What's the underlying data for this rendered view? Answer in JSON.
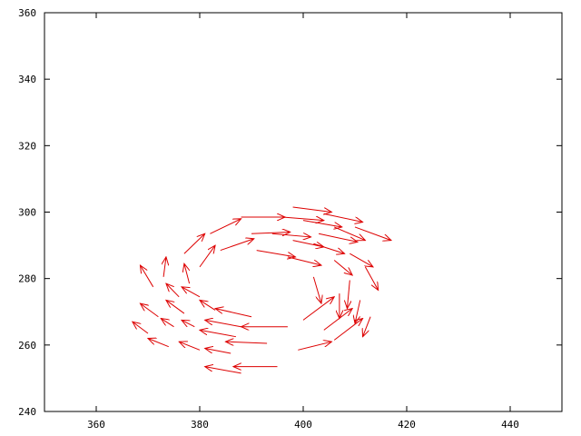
{
  "chart_data": {
    "type": "vector_field",
    "title": "",
    "xlabel": "",
    "ylabel": "",
    "xlim": [
      350,
      450
    ],
    "ylim": [
      240,
      360
    ],
    "x_ticks": [
      360,
      380,
      400,
      420,
      440
    ],
    "y_ticks": [
      240,
      260,
      280,
      300,
      320,
      340,
      360
    ],
    "x_tick_labels": [
      "360",
      "380",
      "400",
      "420",
      "440"
    ],
    "y_tick_labels": [
      "240",
      "260",
      "280",
      "300",
      "320",
      "340",
      "360"
    ],
    "grid": false,
    "legend": "none",
    "arrow_color": "#dd0000",
    "vectors": [
      {
        "x": 398,
        "y": 301.5,
        "dx": 7.5,
        "dy": -1.5
      },
      {
        "x": 404,
        "y": 299.5,
        "dx": 7.5,
        "dy": -2.5
      },
      {
        "x": 388,
        "y": 298.5,
        "dx": 8.5,
        "dy": 0
      },
      {
        "x": 396,
        "y": 298.5,
        "dx": 8,
        "dy": -1
      },
      {
        "x": 410,
        "y": 295.5,
        "dx": 7,
        "dy": -4
      },
      {
        "x": 400,
        "y": 297.5,
        "dx": 7.5,
        "dy": -2
      },
      {
        "x": 406,
        "y": 295.5,
        "dx": 6,
        "dy": -4
      },
      {
        "x": 390,
        "y": 293.5,
        "dx": 7.5,
        "dy": 0.5
      },
      {
        "x": 394,
        "y": 293.5,
        "dx": 7.5,
        "dy": -1
      },
      {
        "x": 398,
        "y": 291.5,
        "dx": 6,
        "dy": -2
      },
      {
        "x": 402,
        "y": 290.5,
        "dx": 6,
        "dy": -3
      },
      {
        "x": 403,
        "y": 293.5,
        "dx": 7.5,
        "dy": -2.5
      },
      {
        "x": 382,
        "y": 293.5,
        "dx": 6,
        "dy": 4.5
      },
      {
        "x": 377,
        "y": 287.5,
        "dx": 4,
        "dy": 6
      },
      {
        "x": 384,
        "y": 288.5,
        "dx": 6.5,
        "dy": 3.5
      },
      {
        "x": 380,
        "y": 283.5,
        "dx": 3,
        "dy": 6.5
      },
      {
        "x": 391,
        "y": 288.5,
        "dx": 7.5,
        "dy": -2
      },
      {
        "x": 397,
        "y": 286.5,
        "dx": 6.5,
        "dy": -2.5
      },
      {
        "x": 409,
        "y": 287.5,
        "dx": 4.5,
        "dy": -4
      },
      {
        "x": 412,
        "y": 283.5,
        "dx": 2.5,
        "dy": -7
      },
      {
        "x": 406,
        "y": 285.5,
        "dx": 3.5,
        "dy": -4.5
      },
      {
        "x": 402,
        "y": 280.5,
        "dx": 1.5,
        "dy": -8
      },
      {
        "x": 409,
        "y": 279.5,
        "dx": -0.5,
        "dy": -8.5
      },
      {
        "x": 407,
        "y": 275.5,
        "dx": 0,
        "dy": -7.5
      },
      {
        "x": 411,
        "y": 273.5,
        "dx": -1,
        "dy": -7
      },
      {
        "x": 413,
        "y": 268.5,
        "dx": -1.5,
        "dy": -6
      },
      {
        "x": 373,
        "y": 280.5,
        "dx": 0.5,
        "dy": 6
      },
      {
        "x": 376,
        "y": 274.5,
        "dx": -2.5,
        "dy": 4
      },
      {
        "x": 378,
        "y": 278.5,
        "dx": -1,
        "dy": 6
      },
      {
        "x": 377,
        "y": 269.5,
        "dx": -3.5,
        "dy": 4
      },
      {
        "x": 371,
        "y": 277.5,
        "dx": -2.5,
        "dy": 6.5
      },
      {
        "x": 372,
        "y": 268.5,
        "dx": -3.5,
        "dy": 4
      },
      {
        "x": 380,
        "y": 274.5,
        "dx": -3.5,
        "dy": 3
      },
      {
        "x": 383,
        "y": 270.5,
        "dx": -3,
        "dy": 3
      },
      {
        "x": 390,
        "y": 268.5,
        "dx": -7,
        "dy": 2.5
      },
      {
        "x": 388,
        "y": 265.5,
        "dx": -7,
        "dy": 2
      },
      {
        "x": 397,
        "y": 265.5,
        "dx": -9,
        "dy": 0
      },
      {
        "x": 400,
        "y": 267.5,
        "dx": 6,
        "dy": 7
      },
      {
        "x": 404,
        "y": 264.5,
        "dx": 5.5,
        "dy": 6.5
      },
      {
        "x": 375,
        "y": 265.5,
        "dx": -2.5,
        "dy": 2.5
      },
      {
        "x": 379,
        "y": 265.5,
        "dx": -2.5,
        "dy": 2
      },
      {
        "x": 387,
        "y": 262.5,
        "dx": -7,
        "dy": 2
      },
      {
        "x": 393,
        "y": 260.5,
        "dx": -8,
        "dy": 0.5
      },
      {
        "x": 406,
        "y": 261.5,
        "dx": 5.5,
        "dy": 6.5
      },
      {
        "x": 370,
        "y": 263.5,
        "dx": -3,
        "dy": 3.5
      },
      {
        "x": 374,
        "y": 259.5,
        "dx": -4,
        "dy": 2.5
      },
      {
        "x": 380,
        "y": 258.5,
        "dx": -4,
        "dy": 2.5
      },
      {
        "x": 386,
        "y": 257.5,
        "dx": -5,
        "dy": 1.5
      },
      {
        "x": 399,
        "y": 258.5,
        "dx": 6.5,
        "dy": 2.5
      },
      {
        "x": 395,
        "y": 253.5,
        "dx": -8.5,
        "dy": 0
      },
      {
        "x": 388,
        "y": 251.5,
        "dx": -7,
        "dy": 2
      }
    ]
  }
}
